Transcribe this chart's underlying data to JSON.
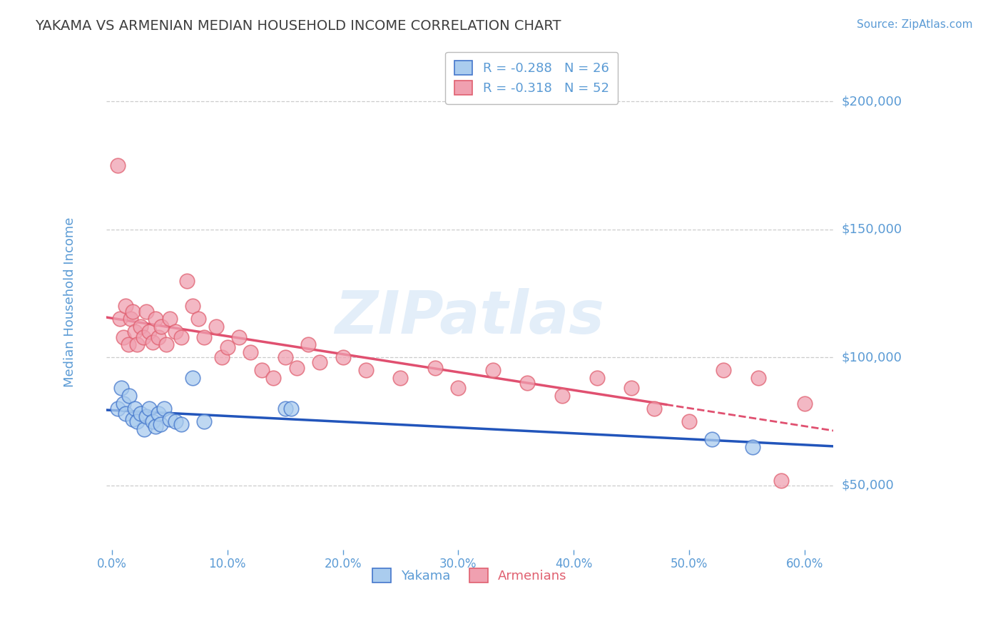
{
  "title": "YAKAMA VS ARMENIAN MEDIAN HOUSEHOLD INCOME CORRELATION CHART",
  "source": "Source: ZipAtlas.com",
  "ylabel": "Median Household Income",
  "y_ticks": [
    50000,
    100000,
    150000,
    200000
  ],
  "y_tick_labels": [
    "$50,000",
    "$100,000",
    "$150,000",
    "$200,000"
  ],
  "y_min": 25000,
  "y_max": 218000,
  "x_min": -0.005,
  "x_max": 0.625,
  "x_ticks": [
    0.0,
    0.1,
    0.2,
    0.3,
    0.4,
    0.5,
    0.6
  ],
  "x_tick_labels": [
    "0.0%",
    "10.0%",
    "20.0%",
    "30.0%",
    "40.0%",
    "50.0%",
    "60.0%"
  ],
  "legend_label_blue": "R = -0.288   N = 26",
  "legend_label_pink": "R = -0.318   N = 52",
  "legend_name_yakama": "Yakama",
  "legend_name_armenians": "Armenians",
  "watermark": "ZIPatlas",
  "title_color": "#3f3f3f",
  "axis_label_color": "#5b9bd5",
  "grid_color": "#cccccc",
  "blue_line_color": "#2255bb",
  "pink_line_color": "#e05070",
  "scatter_blue_face": "#aaccee",
  "scatter_blue_edge": "#4477cc",
  "scatter_pink_face": "#f0a0b0",
  "scatter_pink_edge": "#e06070",
  "yakama_x": [
    0.005,
    0.008,
    0.01,
    0.012,
    0.015,
    0.018,
    0.02,
    0.022,
    0.025,
    0.028,
    0.03,
    0.032,
    0.035,
    0.038,
    0.04,
    0.042,
    0.045,
    0.05,
    0.055,
    0.06,
    0.07,
    0.08,
    0.15,
    0.155,
    0.52,
    0.555
  ],
  "yakama_y": [
    80000,
    88000,
    82000,
    78000,
    85000,
    76000,
    80000,
    75000,
    78000,
    72000,
    77000,
    80000,
    75000,
    73000,
    78000,
    74000,
    80000,
    76000,
    75000,
    74000,
    92000,
    75000,
    80000,
    80000,
    68000,
    65000
  ],
  "armenian_x": [
    0.005,
    0.007,
    0.01,
    0.012,
    0.014,
    0.016,
    0.018,
    0.02,
    0.022,
    0.025,
    0.027,
    0.03,
    0.032,
    0.035,
    0.038,
    0.04,
    0.043,
    0.047,
    0.05,
    0.055,
    0.06,
    0.065,
    0.07,
    0.075,
    0.08,
    0.09,
    0.095,
    0.1,
    0.11,
    0.12,
    0.13,
    0.14,
    0.15,
    0.16,
    0.17,
    0.18,
    0.2,
    0.22,
    0.25,
    0.28,
    0.3,
    0.33,
    0.36,
    0.39,
    0.42,
    0.45,
    0.47,
    0.5,
    0.53,
    0.56,
    0.58,
    0.6
  ],
  "armenian_y": [
    175000,
    115000,
    108000,
    120000,
    105000,
    115000,
    118000,
    110000,
    105000,
    112000,
    108000,
    118000,
    110000,
    106000,
    115000,
    108000,
    112000,
    105000,
    115000,
    110000,
    108000,
    130000,
    120000,
    115000,
    108000,
    112000,
    100000,
    104000,
    108000,
    102000,
    95000,
    92000,
    100000,
    96000,
    105000,
    98000,
    100000,
    95000,
    92000,
    96000,
    88000,
    95000,
    90000,
    85000,
    92000,
    88000,
    80000,
    75000,
    95000,
    92000,
    52000,
    82000
  ]
}
